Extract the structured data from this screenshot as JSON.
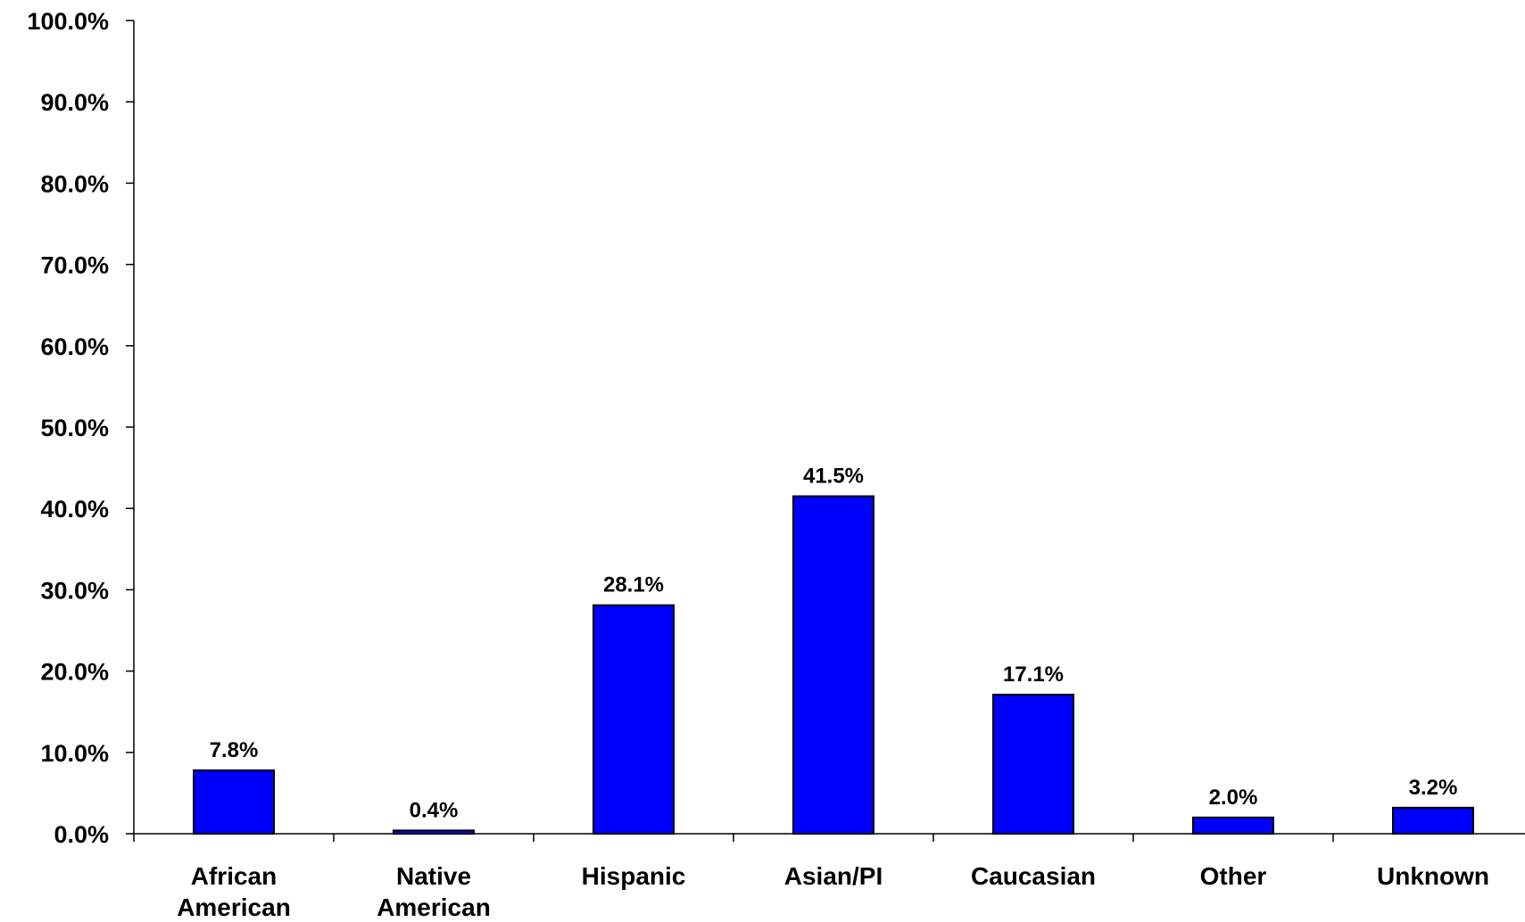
{
  "chart_data": {
    "type": "bar",
    "categories": [
      [
        "African",
        "American"
      ],
      [
        "Native",
        "American"
      ],
      [
        "Hispanic"
      ],
      [
        "Asian/PI"
      ],
      [
        "Caucasian"
      ],
      [
        "Other"
      ],
      [
        "Unknown"
      ]
    ],
    "values": [
      7.8,
      0.4,
      28.1,
      41.5,
      17.1,
      2.0,
      3.2
    ],
    "value_labels": [
      "7.8%",
      "0.4%",
      "28.1%",
      "41.5%",
      "17.1%",
      "2.0%",
      "3.2%"
    ],
    "ylim": [
      0,
      100
    ],
    "yticks": [
      0,
      10,
      20,
      30,
      40,
      50,
      60,
      70,
      80,
      90,
      100
    ],
    "ytick_labels": [
      "0.0%",
      "10.0%",
      "20.0%",
      "30.0%",
      "40.0%",
      "50.0%",
      "60.0%",
      "70.0%",
      "80.0%",
      "90.0%",
      "100.0%"
    ],
    "grid": false,
    "legend": "none",
    "bar_color": "#0000ff",
    "bar_edge_color": "#000000"
  }
}
